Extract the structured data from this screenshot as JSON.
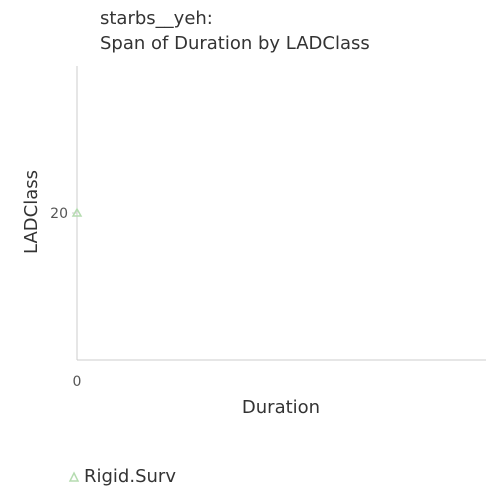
{
  "chart_data": {
    "type": "scatter",
    "title": "starbs__yeh:",
    "subtitle": "Span of Duration by LADClass",
    "xlabel": "Duration",
    "ylabel": "LADClass",
    "x_ticks": [
      0
    ],
    "y_ticks": [
      20
    ],
    "x_tick_labels": [
      "0"
    ],
    "y_tick_labels": [
      "20"
    ],
    "xlim": [
      0,
      100
    ],
    "ylim": [
      0,
      40
    ],
    "grid": false,
    "legend_position": "bottom-left",
    "series": [
      {
        "name": "Rigid.Surv",
        "marker": "triangle",
        "color": "#b5dcb0",
        "points": [
          {
            "x": 0,
            "y": 20
          }
        ]
      }
    ]
  },
  "colors": {
    "axis": "#cccccc",
    "text": "#333333",
    "tick_text": "#555555"
  }
}
